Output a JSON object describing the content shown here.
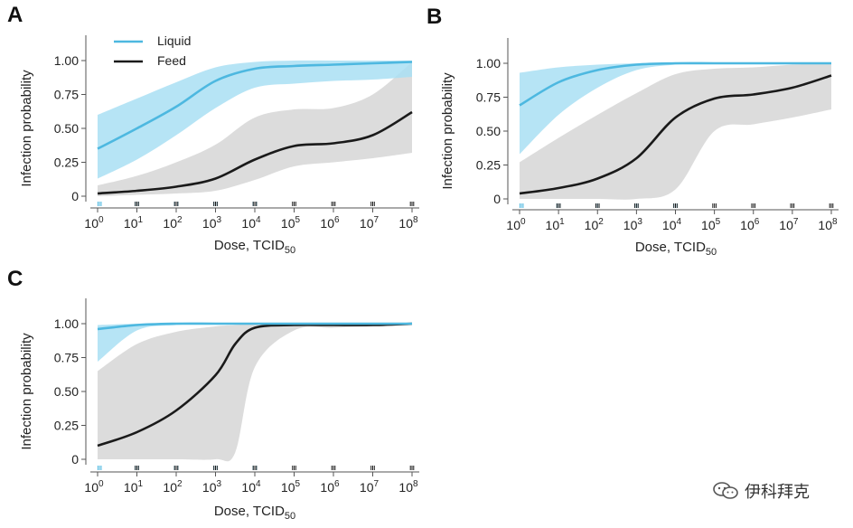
{
  "chart_data": [
    {
      "panel": "A",
      "type": "line",
      "xlabel": "Dose, TCID",
      "xlabel_sub": "50",
      "ylabel": "Infection probability",
      "xscale": "log10",
      "xlim_exp": [
        0,
        8
      ],
      "ylim": [
        0,
        1
      ],
      "yticks": [
        0,
        0.25,
        0.5,
        0.75,
        1.0
      ],
      "ytick_labels": [
        "0",
        "0.25",
        "0.50",
        "0.75",
        "1.00"
      ],
      "xtick_exponents": [
        "0",
        "1",
        "2",
        "3",
        "4",
        "5",
        "6",
        "7",
        "8"
      ],
      "legend": {
        "placement": "top-left",
        "entries": [
          "Liquid",
          "Feed"
        ]
      },
      "series": [
        {
          "name": "Liquid",
          "color": "#4db8e0",
          "band_color": "#a9dff3",
          "x": [
            0,
            1,
            2,
            3,
            4,
            5,
            6,
            7,
            8
          ],
          "y": [
            0.35,
            0.5,
            0.66,
            0.85,
            0.94,
            0.96,
            0.97,
            0.98,
            0.99
          ],
          "lower": [
            0.13,
            0.27,
            0.45,
            0.65,
            0.8,
            0.83,
            0.85,
            0.86,
            0.88
          ],
          "upper": [
            0.6,
            0.72,
            0.84,
            0.95,
            0.99,
            1.0,
            1.0,
            1.0,
            1.0
          ],
          "rug": [
            0.05,
            1.0,
            2.0,
            3.0,
            4.0
          ]
        },
        {
          "name": "Feed",
          "color": "#1a1a1a",
          "band_color": "#d6d6d6",
          "x": [
            0,
            1,
            2,
            3,
            4,
            5,
            6,
            7,
            8
          ],
          "y": [
            0.02,
            0.04,
            0.07,
            0.13,
            0.27,
            0.37,
            0.39,
            0.45,
            0.62
          ],
          "lower": [
            0.0,
            0.01,
            0.02,
            0.04,
            0.12,
            0.22,
            0.25,
            0.28,
            0.32
          ],
          "upper": [
            0.08,
            0.15,
            0.25,
            0.38,
            0.58,
            0.64,
            0.65,
            0.75,
            0.99
          ],
          "rug": [
            1.0,
            2.0,
            3.0,
            4.0,
            5.0,
            6.0,
            7.0,
            8.0
          ]
        }
      ]
    },
    {
      "panel": "B",
      "type": "line",
      "xlabel": "Dose, TCID",
      "xlabel_sub": "50",
      "ylabel": "Infection probability",
      "xscale": "log10",
      "xlim_exp": [
        0,
        8
      ],
      "ylim": [
        0,
        1
      ],
      "yticks": [
        0,
        0.25,
        0.5,
        0.75,
        1.0
      ],
      "ytick_labels": [
        "0",
        "0.25",
        "0.50",
        "0.75",
        "1.00"
      ],
      "xtick_exponents": [
        "0",
        "1",
        "2",
        "3",
        "4",
        "5",
        "6",
        "7",
        "8"
      ],
      "series": [
        {
          "name": "Liquid",
          "color": "#4db8e0",
          "band_color": "#a9dff3",
          "x": [
            0,
            1,
            2,
            3,
            4,
            5,
            6,
            7,
            8
          ],
          "y": [
            0.69,
            0.86,
            0.95,
            0.99,
            1.0,
            1.0,
            1.0,
            1.0,
            1.0
          ],
          "lower": [
            0.33,
            0.62,
            0.82,
            0.95,
            0.99,
            1.0,
            1.0,
            1.0,
            1.0
          ],
          "upper": [
            0.93,
            0.97,
            0.99,
            1.0,
            1.0,
            1.0,
            1.0,
            1.0,
            1.0
          ],
          "rug": [
            0.05,
            1.0,
            2.0,
            3.0,
            4.0
          ]
        },
        {
          "name": "Feed",
          "color": "#1a1a1a",
          "band_color": "#d6d6d6",
          "x": [
            0,
            1,
            2,
            3,
            4,
            5,
            6,
            7,
            8
          ],
          "y": [
            0.04,
            0.08,
            0.15,
            0.3,
            0.6,
            0.74,
            0.77,
            0.82,
            0.91
          ],
          "lower": [
            0.0,
            0.0,
            0.0,
            0.0,
            0.07,
            0.5,
            0.55,
            0.6,
            0.66
          ],
          "upper": [
            0.27,
            0.45,
            0.62,
            0.78,
            0.92,
            0.96,
            0.97,
            0.99,
            1.0
          ],
          "rug": [
            1.0,
            2.0,
            3.0,
            4.0,
            5.0,
            6.0,
            7.0,
            8.0
          ]
        }
      ]
    },
    {
      "panel": "C",
      "type": "line",
      "xlabel": "Dose, TCID",
      "xlabel_sub": "50",
      "ylabel": "Infection probability",
      "xscale": "log10",
      "xlim_exp": [
        0,
        8
      ],
      "ylim": [
        0,
        1
      ],
      "yticks": [
        0,
        0.25,
        0.5,
        0.75,
        1.0
      ],
      "ytick_labels": [
        "0",
        "0.25",
        "0.50",
        "0.75",
        "1.00"
      ],
      "xtick_exponents": [
        "0",
        "1",
        "2",
        "3",
        "4",
        "5",
        "6",
        "7",
        "8"
      ],
      "series": [
        {
          "name": "Liquid",
          "color": "#4db8e0",
          "band_color": "#a9dff3",
          "x": [
            0,
            1,
            2,
            3,
            4,
            5,
            6,
            7,
            8
          ],
          "y": [
            0.96,
            0.99,
            1.0,
            1.0,
            1.0,
            1.0,
            1.0,
            1.0,
            1.0
          ],
          "lower": [
            0.72,
            0.95,
            0.99,
            1.0,
            1.0,
            1.0,
            1.0,
            1.0,
            1.0
          ],
          "upper": [
            0.99,
            1.0,
            1.0,
            1.0,
            1.0,
            1.0,
            1.0,
            1.0,
            1.0
          ],
          "rug": [
            0.05,
            1.0,
            2.0,
            3.0,
            4.0
          ]
        },
        {
          "name": "Feed",
          "color": "#1a1a1a",
          "band_color": "#d6d6d6",
          "x": [
            0,
            1,
            2,
            3,
            3.5,
            4,
            5,
            6,
            7,
            8
          ],
          "y": [
            0.1,
            0.2,
            0.36,
            0.62,
            0.85,
            0.97,
            0.99,
            0.99,
            0.99,
            1.0
          ],
          "lower": [
            0.0,
            0.0,
            0.0,
            0.0,
            0.05,
            0.68,
            0.95,
            0.97,
            0.98,
            0.99
          ],
          "upper": [
            0.65,
            0.85,
            0.94,
            0.98,
            0.99,
            1.0,
            1.0,
            1.0,
            1.0,
            1.0
          ],
          "rug": [
            1.0,
            2.0,
            3.0,
            4.0,
            5.0,
            6.0,
            7.0,
            8.0
          ]
        }
      ]
    }
  ],
  "watermark": {
    "text": "伊科拜克",
    "icon": "wechat-icon"
  }
}
